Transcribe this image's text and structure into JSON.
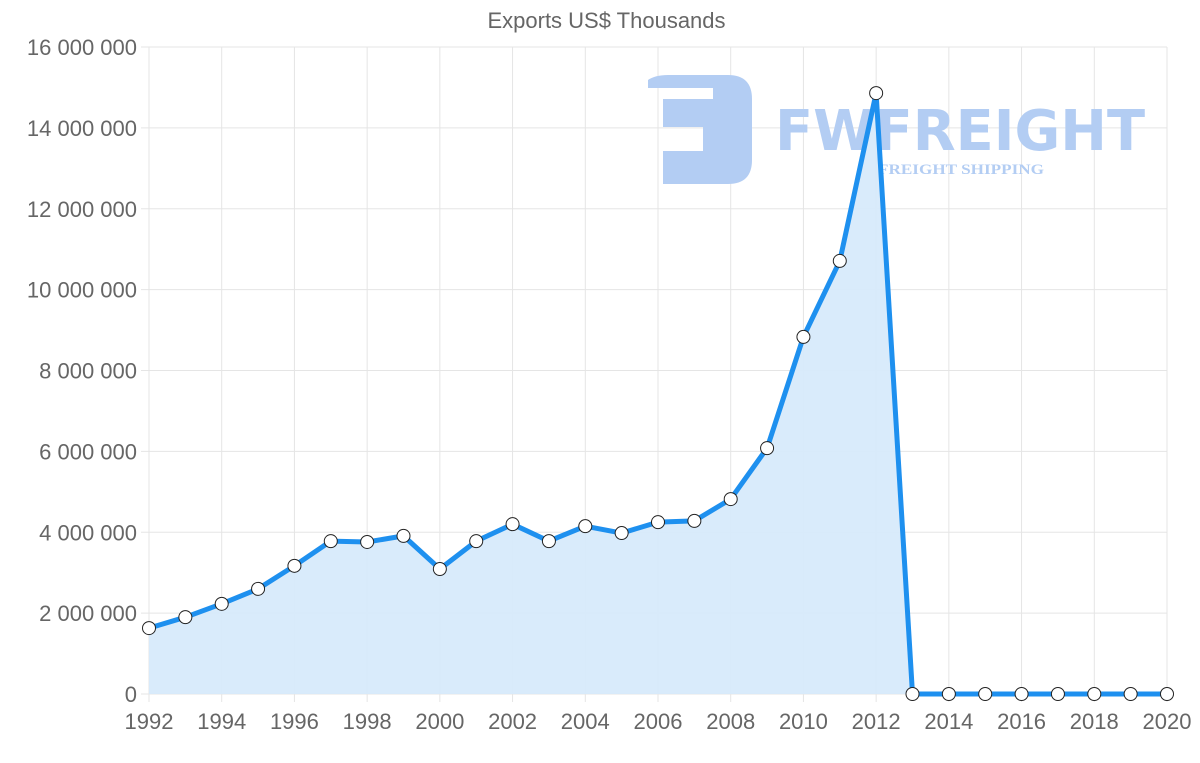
{
  "chart_data": {
    "type": "line",
    "title": "Exports US$ Thousands",
    "xlabel": "",
    "ylabel": "",
    "filled_area": true,
    "grid": true,
    "legend": "none",
    "ylim": [
      0,
      16000000
    ],
    "y_ticks": [
      "0",
      "2 000 000",
      "4 000 000",
      "6 000 000",
      "8 000 000",
      "10 000 000",
      "12 000 000",
      "14 000 000",
      "16 000 000"
    ],
    "x_tick_labels": [
      "1992",
      "1994",
      "1996",
      "1998",
      "2000",
      "2002",
      "2004",
      "2006",
      "2008",
      "2010",
      "2012",
      "2014",
      "2016",
      "2018",
      "2020"
    ],
    "x": [
      1992,
      1993,
      1994,
      1995,
      1996,
      1997,
      1998,
      1999,
      2000,
      2001,
      2002,
      2003,
      2004,
      2005,
      2006,
      2007,
      2008,
      2009,
      2010,
      2011,
      2012,
      2013,
      2014,
      2015,
      2016,
      2017,
      2018,
      2019,
      2020
    ],
    "series": [
      {
        "name": "Exports US$ Thousands",
        "color": "#1e90ef",
        "fill": "#d7eafb",
        "values": [
          1630000,
          1900000,
          2230000,
          2600000,
          3170000,
          3780000,
          3760000,
          3910000,
          3090000,
          3780000,
          4200000,
          3780000,
          4150000,
          3980000,
          4250000,
          4280000,
          4820000,
          6080000,
          8830000,
          10710000,
          14860000,
          0,
          0,
          0,
          0,
          0,
          0,
          0,
          0
        ]
      }
    ]
  },
  "watermark": {
    "brand": "FWFREIGHT",
    "tagline": "FREIGHT SHIPPING",
    "color": "#b3cdf3"
  },
  "colors": {
    "grid": "#e5e5e5",
    "text": "#666666",
    "line": "#1e90ef",
    "fill": "#d7eafb"
  }
}
